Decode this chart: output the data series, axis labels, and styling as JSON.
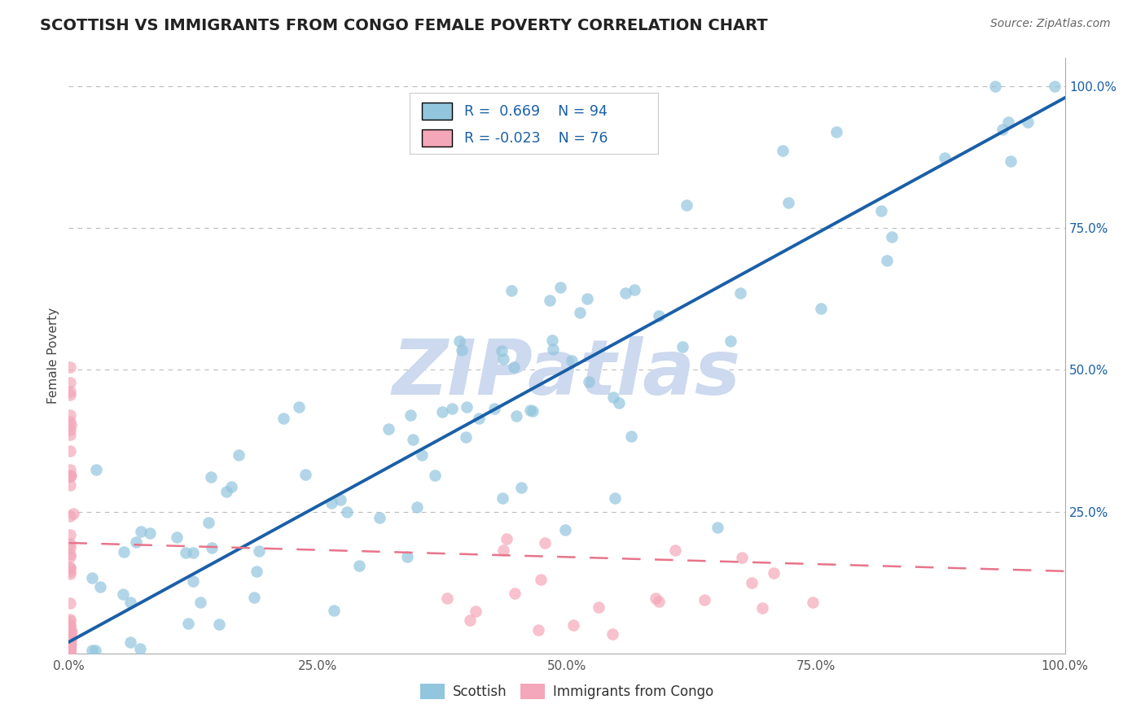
{
  "title": "SCOTTISH VS IMMIGRANTS FROM CONGO FEMALE POVERTY CORRELATION CHART",
  "source": "Source: ZipAtlas.com",
  "ylabel": "Female Poverty",
  "watermark": "ZIPatlas",
  "legend_label1": "Scottish",
  "legend_label2": "Immigrants from Congo",
  "R1": "0.669",
  "N1": "94",
  "R2": "-0.023",
  "N2": "76",
  "color_blue": "#92c5de",
  "color_pink": "#f4a7b9",
  "color_blue_line": "#1a5fa8",
  "color_pink_line": "#e8748a",
  "xlim": [
    0,
    1.0
  ],
  "ylim": [
    0,
    1.05
  ],
  "xtick_labels": [
    "0.0%",
    "25.0%",
    "50.0%",
    "75.0%",
    "100.0%"
  ],
  "xtick_vals": [
    0,
    0.25,
    0.5,
    0.75,
    1.0
  ],
  "ytick_labels": [
    "25.0%",
    "50.0%",
    "75.0%",
    "100.0%"
  ],
  "ytick_vals": [
    0.25,
    0.5,
    0.75,
    1.0
  ],
  "background_color": "#ffffff",
  "grid_color": "#bbbbbb",
  "title_color": "#222222",
  "watermark_color": "#ccd9ee",
  "watermark_fontsize": 68,
  "title_fontsize": 14,
  "axis_label_color": "#555555",
  "blue_line_x": [
    0.0,
    1.0
  ],
  "blue_line_y": [
    0.02,
    0.98
  ],
  "pink_line_x": [
    0.0,
    1.0
  ],
  "pink_line_y": [
    0.195,
    0.145
  ]
}
